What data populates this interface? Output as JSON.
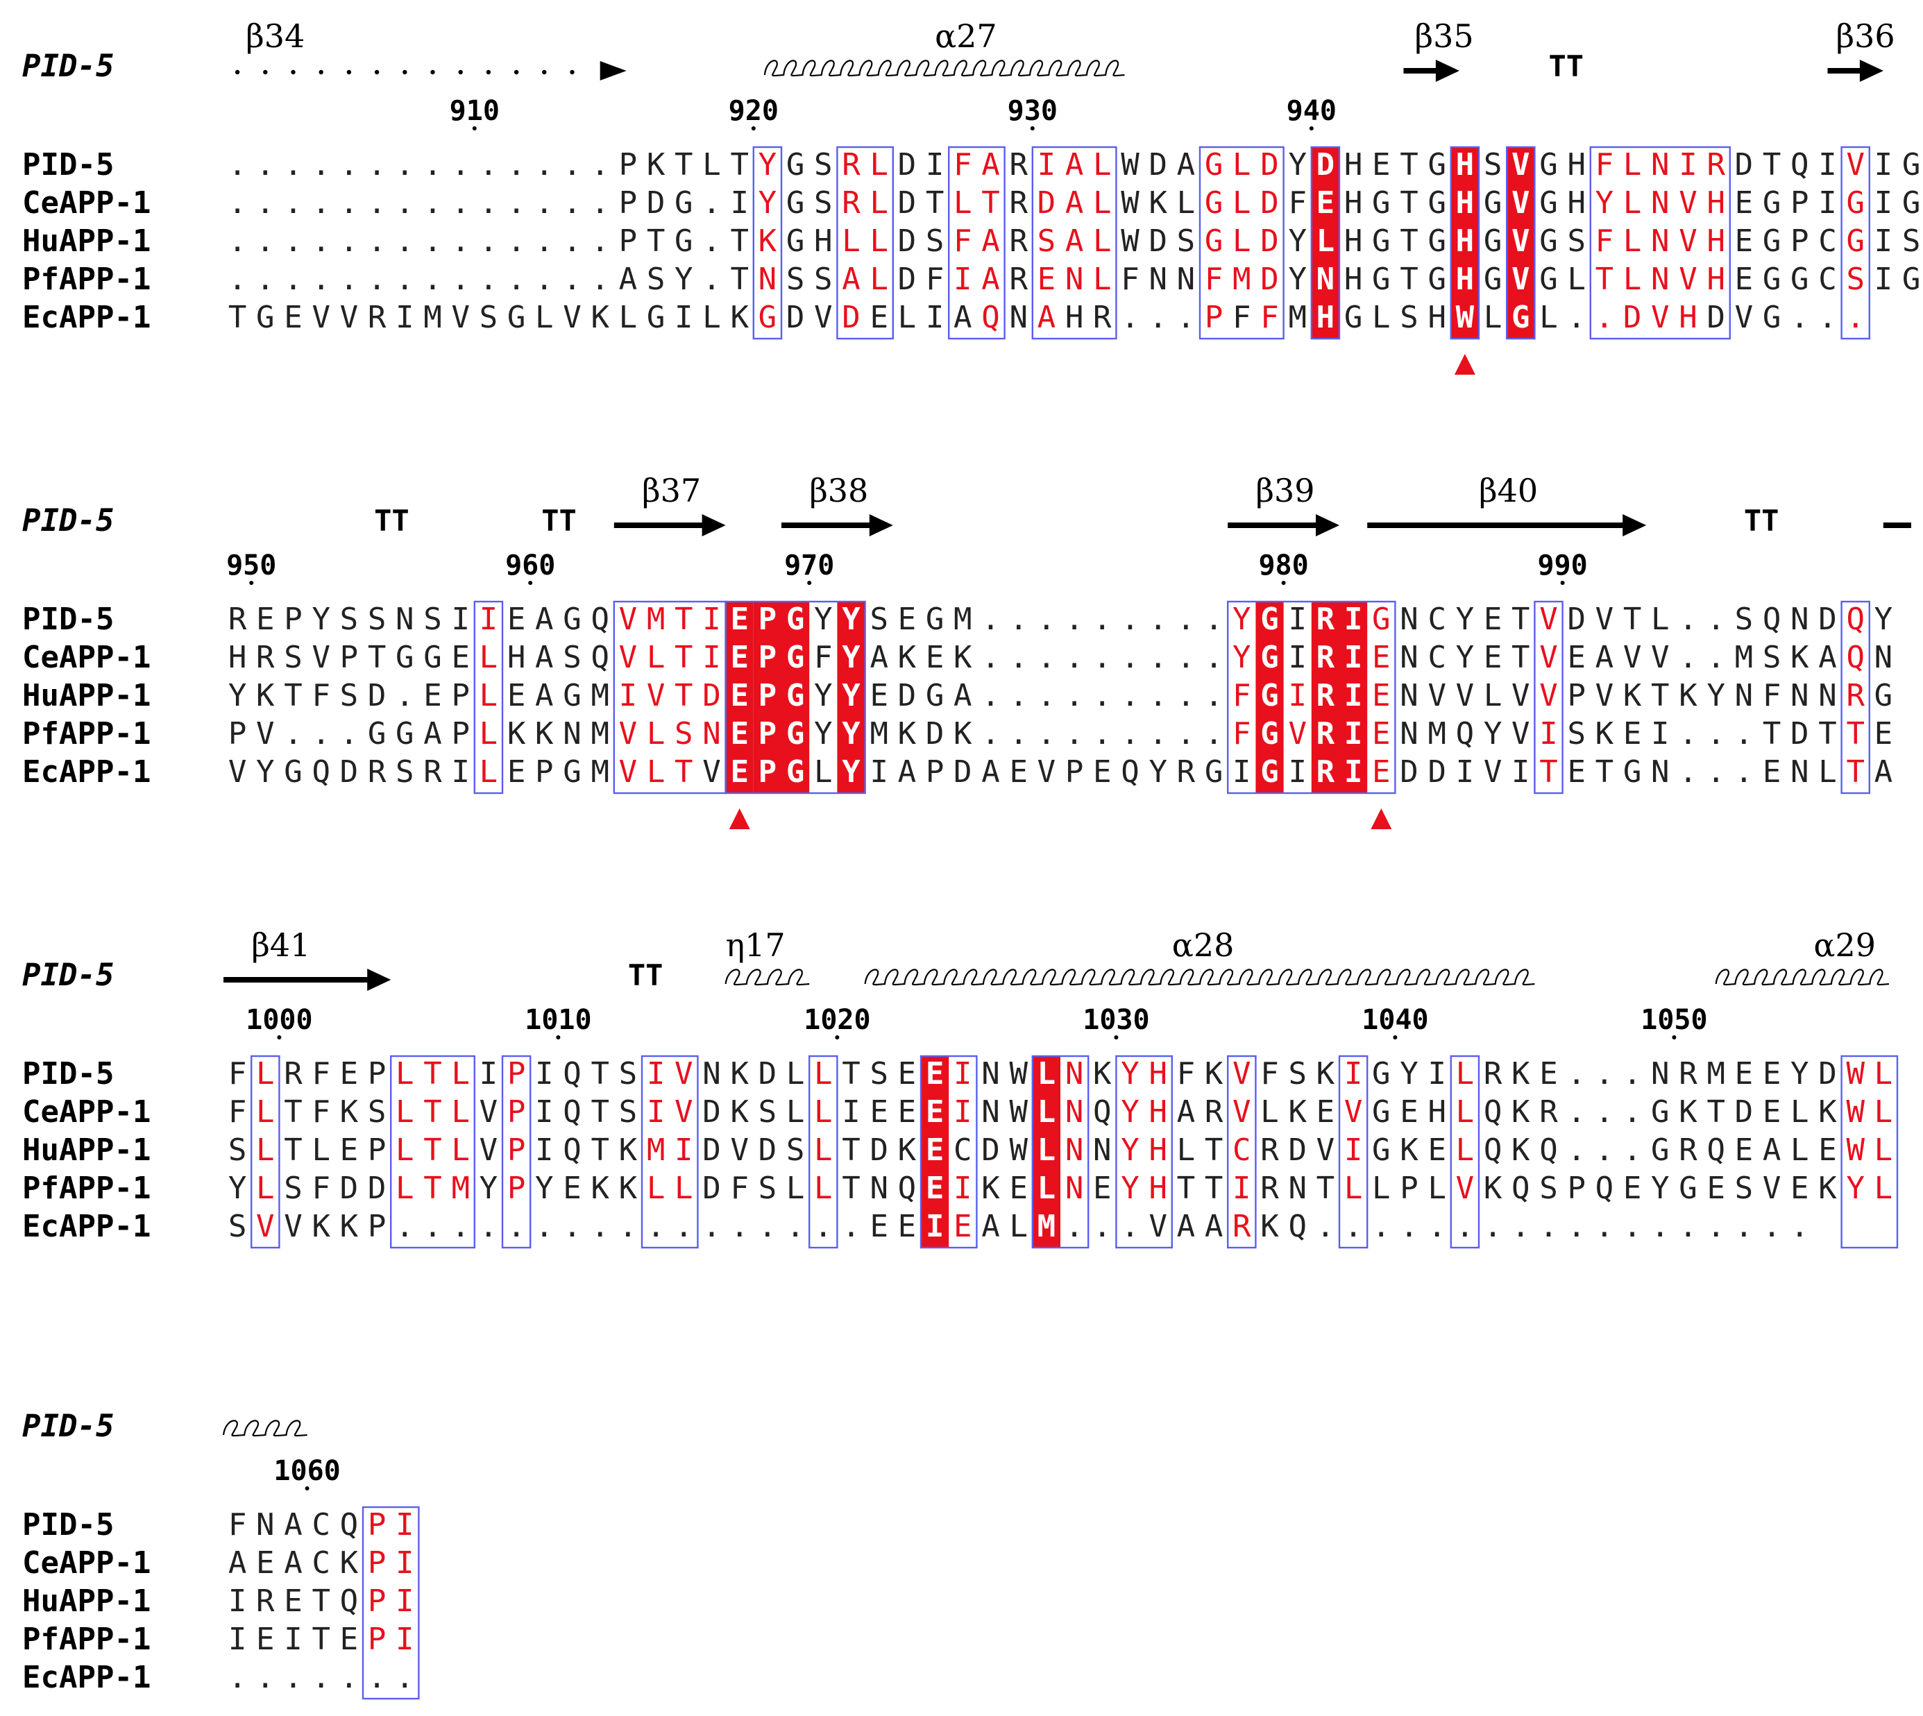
{
  "colors": {
    "identical_bg": "#e8101d",
    "identical_fg": "#ffffff",
    "similar_fg": "#e8101d",
    "box_stroke": "#5a5ef0",
    "default_fg": "#222222",
    "marker": "#e8101d"
  },
  "structure_track_label": "PID-5",
  "sequence_names": [
    "PID-5",
    "CeAPP-1",
    "HuAPP-1",
    "PfAPP-1",
    "EcAPP-1"
  ],
  "blocks": [
    {
      "sequences": [
        "..............PKTLTYGSRLDIFARIALWDAGLDYDHETGHSVGHFLNIRDTQIVIG",
        "..............PDG.IYGSRLDTLTRDALWKLGLDFEHGTGHGVGHYLNVHEGPIGIG",
        "..............PTG.TKGHLLDSFARSALWDSGLDYLHGTGHGVGSFLNVHEGPCGIS",
        "..............ASY.TNSSALDFIARENLFNNFMDYNHGTGHGVGLTLNVHEGGCSIG",
        "TGEVVRIMVSGLVKLGILKGDVDELIAQNAHR...PFFMHGLSHWLGL..DVHDVG..."
      ],
      "ruler": [
        {
          "label": "910"
        },
        {
          "label": "920"
        },
        {
          "label": "930"
        },
        {
          "label": "940"
        }
      ],
      "secondary_structure": [
        {
          "type": "coil",
          "label": ""
        },
        {
          "type": "arrow",
          "label": "β34"
        },
        {
          "type": "helix",
          "label": "α27"
        },
        {
          "type": "arrow",
          "label": "β35"
        },
        {
          "type": "turn",
          "label": "TT"
        },
        {
          "type": "arrow",
          "label": "β36"
        }
      ],
      "markers": 1
    },
    {
      "sequences": [
        "REPYSSNSIIEAGQVMTIEPGYYSEGM.........YGIRIGNCYETVDVTL..SQNDQY",
        "HRSVPTGGELHASQVLTIEPGFYAKEK.........YGIRIENCYETVEAVV..MSKAQN",
        "YKTFSD.EPLEAGMIVTDEPGYYEDGA.........FGIRIENVVLVVPVKTKYNFNNRG",
        "PV...GGAPLKKNMVLSNEPGYYMKDK.........FGVRIENMQYVISKEI...TDTTE",
        "VYGQDRSRILEPGMVLTVEPGLYIAPDAEVPEQYRGIGIRIEDDIVITETGN...ENLTA"
      ],
      "ruler": [
        {
          "label": "950"
        },
        {
          "label": "960"
        },
        {
          "label": "970"
        },
        {
          "label": "980"
        },
        {
          "label": "990"
        }
      ],
      "secondary_structure": [
        {
          "type": "turn",
          "label": "TT"
        },
        {
          "type": "turn",
          "label": "TT"
        },
        {
          "type": "arrow",
          "label": "β37"
        },
        {
          "type": "arrow",
          "label": "β38"
        },
        {
          "type": "arrow",
          "label": "β39"
        },
        {
          "type": "arrow",
          "label": "β40"
        },
        {
          "type": "turn",
          "label": "TT"
        },
        {
          "type": "line",
          "label": ""
        }
      ],
      "markers": 2
    },
    {
      "sequences": [
        "FLRFEPLTLIPIQTSIVNKDLLTSEEINWLNKYHFKVFSKIGYILRKE...NRMEEYDWL",
        "FLTFKSLTLVPIQTSIVDKSLLIEEEINWLNQYHARVLKEVGEHLQKR...GKTDELKWL",
        "SLTLEPLTLVPIQTKMIDVDSLTDKECDWLNNYHLTCRDVIGKELQKQ...GRQEALEWL",
        "YLSFDDLTMYPYEKKLLDFSLLTNQEIKELNEYHTTIRNTLLPLVKQSPQEYGESVEKYL",
        "SVVKKP.................EEIEALM...VAARKQ.................."
      ],
      "ruler": [
        {
          "label": "1000"
        },
        {
          "label": "1010"
        },
        {
          "label": "1020"
        },
        {
          "label": "1030"
        },
        {
          "label": "1040"
        },
        {
          "label": "1050"
        }
      ],
      "secondary_structure": [
        {
          "type": "arrow",
          "label": "β41"
        },
        {
          "type": "turn",
          "label": "TT"
        },
        {
          "type": "helix",
          "label": "η17"
        },
        {
          "type": "helix",
          "label": "α28"
        },
        {
          "type": "helix",
          "label": "α29"
        }
      ],
      "markers": 0
    },
    {
      "sequences": [
        "FNACQPI",
        "AEACKPI",
        "IRETQPI",
        "IEITEPI",
        "......."
      ],
      "ruler": [
        {
          "label": "1060"
        }
      ],
      "secondary_structure": [
        {
          "type": "helix",
          "label": ""
        }
      ],
      "markers": 0
    }
  ]
}
